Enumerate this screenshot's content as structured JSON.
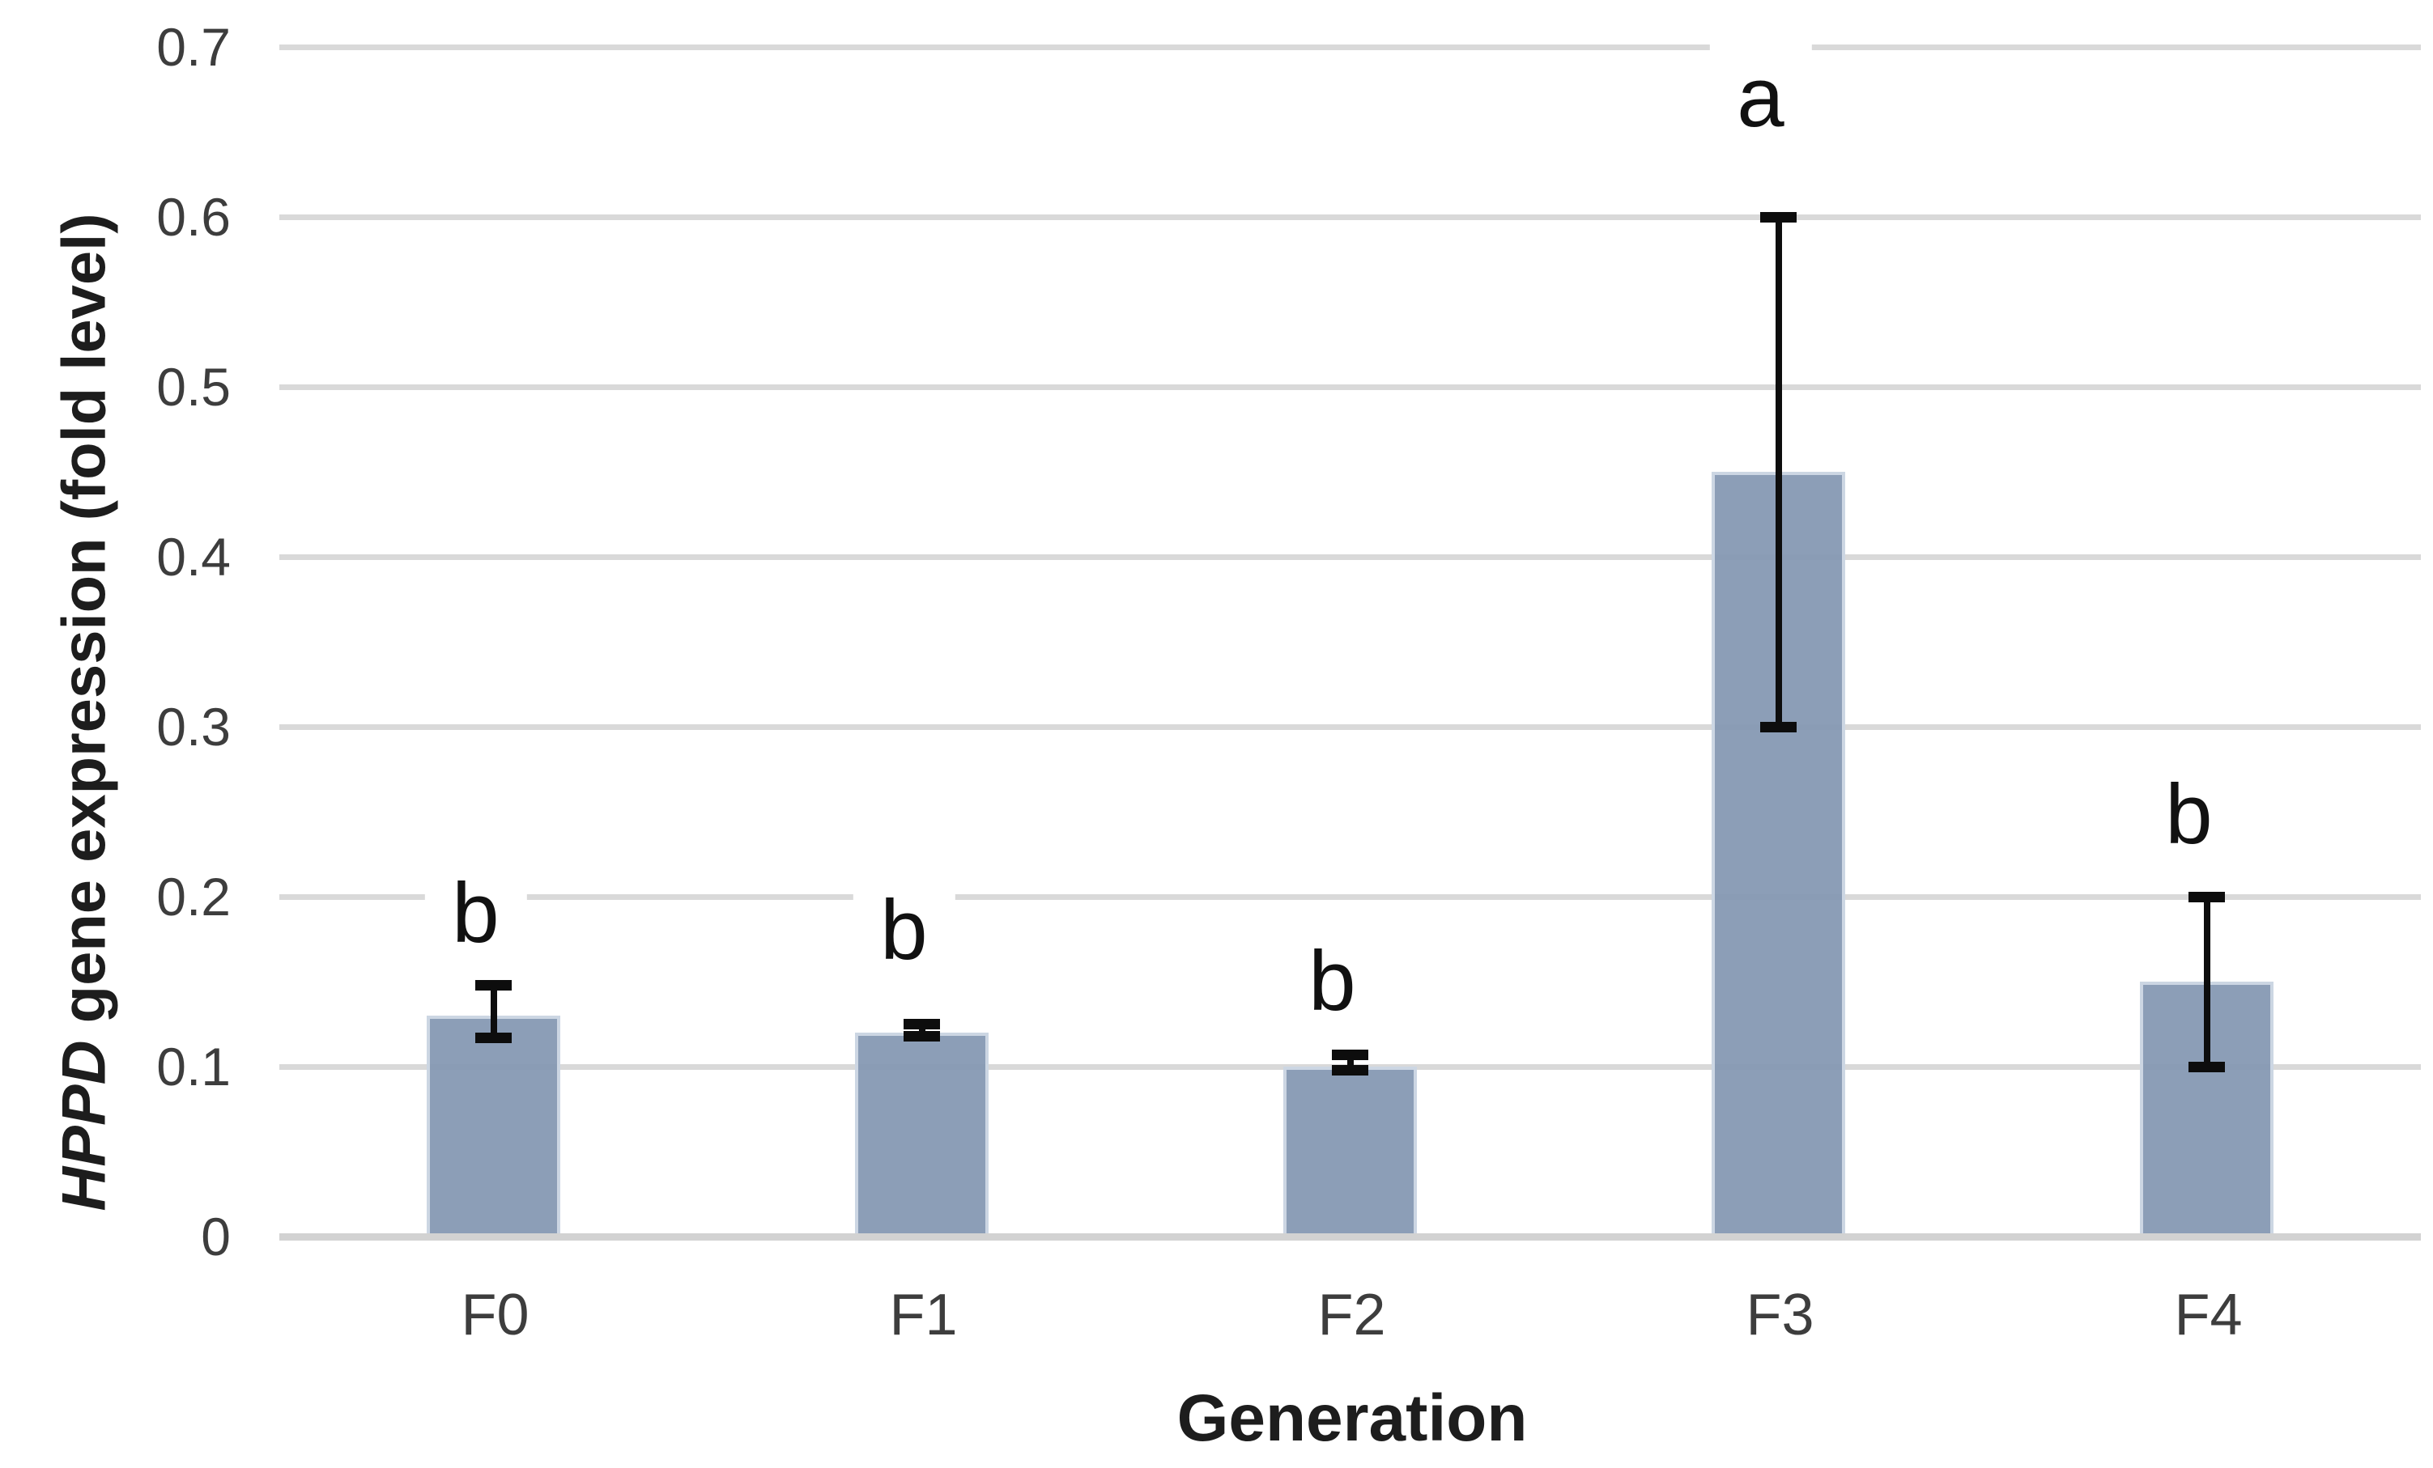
{
  "chart_data": {
    "type": "bar",
    "title": "",
    "xlabel": "Generation",
    "ylabel": "HPPD gene expression (fold level)",
    "ylabel_italic_part": "HPPD",
    "ylabel_regular_part": " gene expression (fold level)",
    "categories": [
      "F0",
      "F1",
      "F2",
      "F3",
      "F4"
    ],
    "values": [
      0.13,
      0.12,
      0.1,
      0.45,
      0.15
    ],
    "error_low": [
      0.117,
      0.118,
      0.098,
      0.3,
      0.1
    ],
    "error_high": [
      0.148,
      0.125,
      0.107,
      0.6,
      0.2
    ],
    "sig_letters": [
      "b",
      "b",
      "b",
      "a",
      "b"
    ],
    "sig_letter_levels": [
      0.19,
      0.18,
      0.15,
      0.67,
      0.248
    ],
    "ylim": [
      0,
      0.7
    ],
    "ytick_labels": [
      "0.7",
      "0.6",
      "0.5",
      "0.4",
      "0.3",
      "0.2",
      "0.1",
      "0"
    ],
    "ytick_values": [
      0.7,
      0.6,
      0.5,
      0.4,
      0.3,
      0.2,
      0.1,
      0
    ],
    "grid": true,
    "legend": false,
    "bar_color": "#8397b1",
    "bar_edge_color": "#ccd6e3",
    "gridline_color": "#d9d9d9",
    "error_bar_color": "#0d0d0d",
    "tick_text_color": "#3d3d3d",
    "title_text_color": "#1d1d1d"
  }
}
